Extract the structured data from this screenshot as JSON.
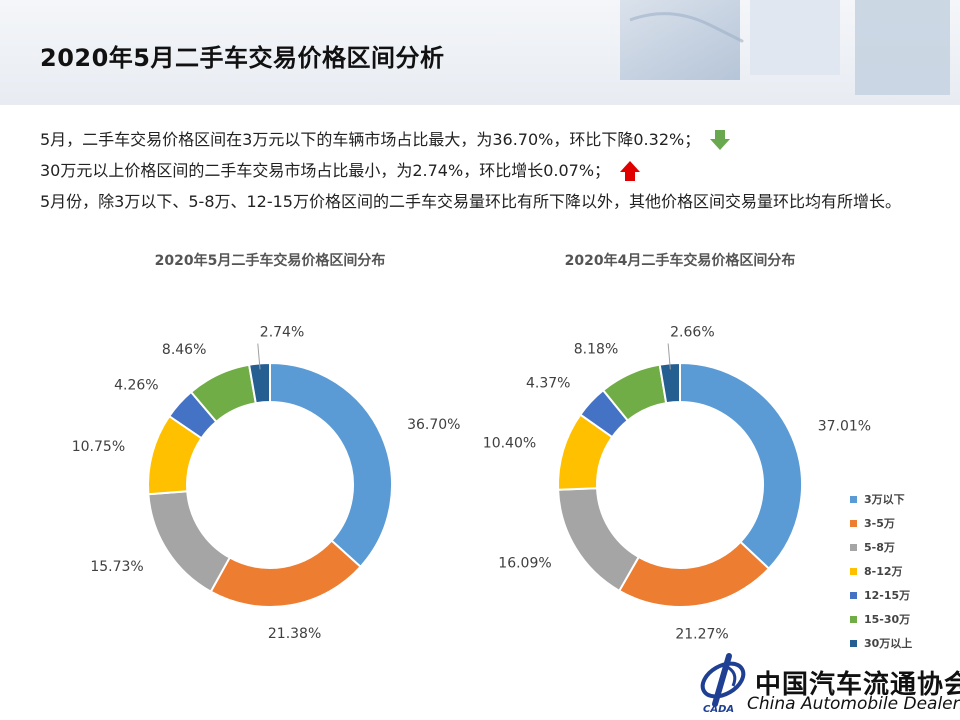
{
  "page": {
    "title": "2020年5月二手车交易价格区间分析",
    "summary": [
      "5月，二手车交易价格区间在3万元以下的车辆市场占比最大，为36.70%，环比下降0.32%；",
      "30万元以上价格区间的二手车交易市场占比最小，为2.74%，环比增长0.07%；",
      "5月份，除3万以下、5-8万、12-15万价格区间的二手车交易量环比有所下降以外，其他价格区间交易量环比均有所增长。"
    ],
    "summary_arrows": [
      "down",
      "up"
    ],
    "arrow_colors": {
      "down": "#6aa84f",
      "up": "#e00000"
    }
  },
  "chart_data": [
    {
      "type": "pie",
      "style": "donut",
      "title": "2020年5月二手车交易价格区间分布",
      "categories": [
        "3万以下",
        "3-5万",
        "5-8万",
        "8-12万",
        "12-15万",
        "15-30万",
        "30万以上"
      ],
      "values": [
        36.7,
        21.38,
        15.73,
        10.75,
        4.26,
        8.46,
        2.74
      ],
      "labels": [
        "36.70%",
        "21.38%",
        "15.73%",
        "10.75%",
        "4.26%",
        "8.46%",
        "2.74%"
      ],
      "unit": "%"
    },
    {
      "type": "pie",
      "style": "donut",
      "title": "2020年4月二手车交易价格区间分布",
      "categories": [
        "3万以下",
        "3-5万",
        "5-8万",
        "8-12万",
        "12-15万",
        "15-30万",
        "30万以上"
      ],
      "values": [
        37.01,
        21.27,
        16.09,
        10.4,
        4.37,
        8.18,
        2.66
      ],
      "labels": [
        "37.01%",
        "21.27%",
        "16.09%",
        "10.40%",
        "4.37%",
        "8.18%",
        "2.66%"
      ],
      "unit": "%",
      "legend": "right"
    }
  ],
  "colors": [
    "#5b9bd5",
    "#ed7d31",
    "#a5a5a5",
    "#ffc000",
    "#4472c4",
    "#70ad47",
    "#255e91"
  ],
  "logo": {
    "name_cn": "中国汽车流通协会",
    "name_en": "China Automobile Dealers",
    "mark_text": "CADA"
  }
}
